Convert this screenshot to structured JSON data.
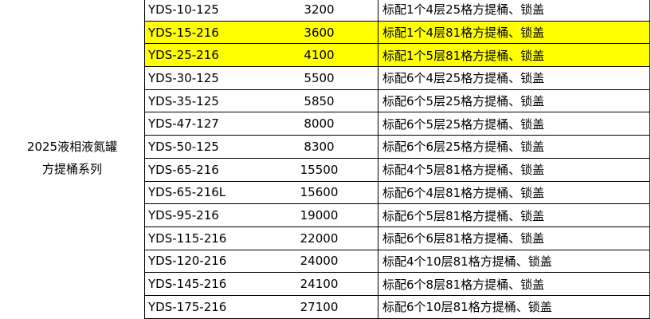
{
  "series_label_line1": "2025液相液氮罐",
  "series_label_line2": "方提桶系列",
  "highlight_color": "#ffff00",
  "rows": [
    {
      "model": "YDS-10-125",
      "price": "3200",
      "desc": "标配1个4层25格方提桶、锁盖",
      "highlighted": false
    },
    {
      "model": "YDS-15-216",
      "price": "3600",
      "desc": "标配1个4层81格方提桶、锁盖",
      "highlighted": true
    },
    {
      "model": "YDS-25-216",
      "price": "4100",
      "desc": "标配1个5层81格方提桶、锁盖",
      "highlighted": true
    },
    {
      "model": "YDS-30-125",
      "price": "5500",
      "desc": "标配6个4层25格方提桶、锁盖",
      "highlighted": false
    },
    {
      "model": "YDS-35-125",
      "price": "5850",
      "desc": "标配6个5层25格方提桶、锁盖",
      "highlighted": false
    },
    {
      "model": "YDS-47-127",
      "price": "8000",
      "desc": "标配6个5层25格方提桶、锁盖",
      "highlighted": false
    },
    {
      "model": "YDS-50-125",
      "price": "8300",
      "desc": "标配6个6层25格方提桶、锁盖",
      "highlighted": false
    },
    {
      "model": "YDS-65-216",
      "price": "15500",
      "desc": "标配4个5层81格方提桶、锁盖",
      "highlighted": false
    },
    {
      "model": "YDS-65-216L",
      "price": "15600",
      "desc": "标配6个4层81格方提桶、锁盖",
      "highlighted": false
    },
    {
      "model": "YDS-95-216",
      "price": "19000",
      "desc": "标配6个5层81格方提桶、锁盖",
      "highlighted": false
    },
    {
      "model": "YDS-115-216",
      "price": "22000",
      "desc": "标配6个6层81格方提桶、锁盖",
      "highlighted": false
    },
    {
      "model": "YDS-120-216",
      "price": "24000",
      "desc": "标配4个10层81格方提桶、锁盖",
      "highlighted": false
    },
    {
      "model": "YDS-145-216",
      "price": "24100",
      "desc": "标配6个8层81格方提桶、锁盖",
      "highlighted": false
    },
    {
      "model": "YDS-175-216",
      "price": "27100",
      "desc": "标配6个10层81格方提桶、锁盖",
      "highlighted": false
    }
  ]
}
